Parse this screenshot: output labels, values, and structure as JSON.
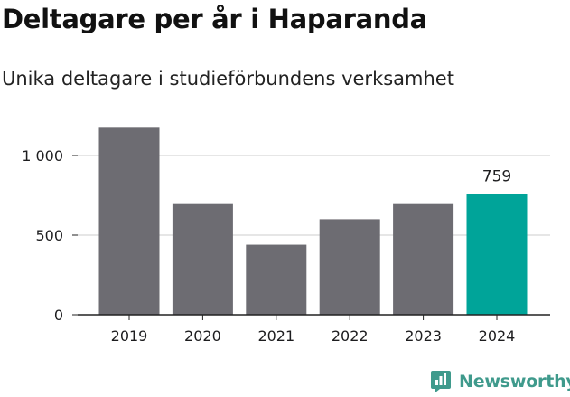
{
  "title": "Deltagare per år i Haparanda",
  "subtitle": "Unika deltagare i studieförbundens verksamhet",
  "brand": {
    "name": "Newsworthy",
    "logo_icon": "newsworthy-logo-icon",
    "color": "#3f9a8c"
  },
  "colors": {
    "bar": "#6d6c72",
    "highlight": "#00a499",
    "grid": "#dddddd",
    "axis": "#222222",
    "text": "#1d1d1f"
  },
  "chart_data": {
    "type": "bar",
    "categories": [
      "2019",
      "2020",
      "2021",
      "2022",
      "2023",
      "2024"
    ],
    "values": [
      1180,
      695,
      440,
      600,
      695,
      759
    ],
    "highlight_index": 5,
    "data_labels": [
      {
        "index": 5,
        "text": "759"
      }
    ],
    "ylim": [
      0,
      1250
    ],
    "yticks": [
      {
        "value": 0,
        "label": "0"
      },
      {
        "value": 500,
        "label": "500"
      },
      {
        "value": 1000,
        "label": "1 000"
      }
    ],
    "grid": true,
    "legend": "none",
    "xlabel": "",
    "ylabel": ""
  }
}
